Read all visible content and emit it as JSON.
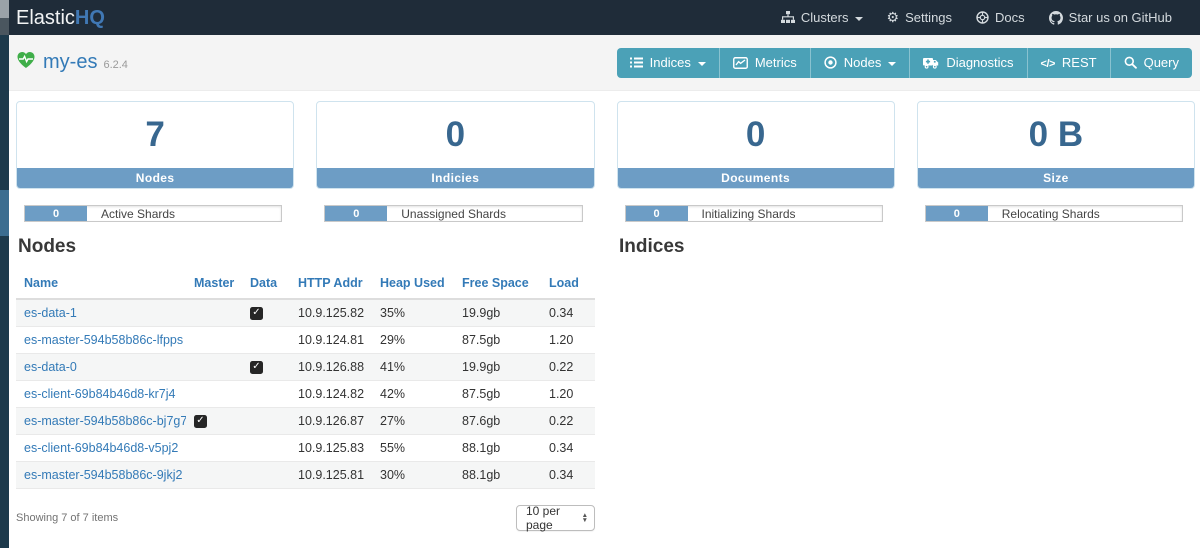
{
  "colors": {
    "navbar_bg": "#1f2c39",
    "brand_accent": "#4078b4",
    "teal_button": "#4ba1b7",
    "steel_blue": "#6d9dc5",
    "stat_number": "#38678f",
    "link_blue": "#337ab7",
    "heart_green": "#3fae49"
  },
  "navbar": {
    "brand": {
      "elastic": "Elastic",
      "hq": "HQ"
    },
    "items": [
      {
        "label": "Clusters",
        "icon": "sitemap-icon",
        "caret": true
      },
      {
        "label": "Settings",
        "icon": "gear-icon",
        "caret": false
      },
      {
        "label": "Docs",
        "icon": "docs-icon",
        "caret": false
      },
      {
        "label": "Star us on GitHub",
        "icon": "github-icon",
        "caret": false
      }
    ]
  },
  "cluster_bar": {
    "cluster_name": "my-es",
    "version": "6.2.4",
    "buttons": [
      {
        "label": "Indices",
        "icon": "list-icon",
        "caret": true
      },
      {
        "label": "Metrics",
        "icon": "chart-icon",
        "caret": false
      },
      {
        "label": "Nodes",
        "icon": "dot-circle-icon",
        "caret": true
      },
      {
        "label": "Diagnostics",
        "icon": "ambulance-icon",
        "caret": false
      },
      {
        "label": "REST",
        "icon": "code-icon",
        "caret": false
      },
      {
        "label": "Query",
        "icon": "search-icon",
        "caret": false
      }
    ]
  },
  "stat_cards": [
    {
      "value": "7",
      "label": "Nodes"
    },
    {
      "value": "0",
      "label": "Indicies"
    },
    {
      "value": "0",
      "label": "Documents"
    },
    {
      "value": "0 B",
      "label": "Size"
    }
  ],
  "shard_bars": [
    {
      "value": "0",
      "label": "Active Shards"
    },
    {
      "value": "0",
      "label": "Unassigned Shards"
    },
    {
      "value": "0",
      "label": "Initializing Shards"
    },
    {
      "value": "0",
      "label": "Relocating Shards"
    }
  ],
  "nodes_section": {
    "title": "Nodes",
    "columns": [
      "Name",
      "Master",
      "Data",
      "HTTP Addr",
      "Heap Used",
      "Free Space",
      "Load"
    ],
    "rows": [
      {
        "name": "es-data-1",
        "master": false,
        "data": true,
        "http_addr": "10.9.125.82",
        "heap_used": "35%",
        "free_space": "19.9gb",
        "load": "0.34"
      },
      {
        "name": "es-master-594b58b86c-lfpps",
        "master": false,
        "data": false,
        "http_addr": "10.9.124.81",
        "heap_used": "29%",
        "free_space": "87.5gb",
        "load": "1.20"
      },
      {
        "name": "es-data-0",
        "master": false,
        "data": true,
        "http_addr": "10.9.126.88",
        "heap_used": "41%",
        "free_space": "19.9gb",
        "load": "0.22"
      },
      {
        "name": "es-client-69b84b46d8-kr7j4",
        "master": false,
        "data": false,
        "http_addr": "10.9.124.82",
        "heap_used": "42%",
        "free_space": "87.5gb",
        "load": "1.20"
      },
      {
        "name": "es-master-594b58b86c-bj7g7",
        "master": true,
        "data": false,
        "http_addr": "10.9.126.87",
        "heap_used": "27%",
        "free_space": "87.6gb",
        "load": "0.22"
      },
      {
        "name": "es-client-69b84b46d8-v5pj2",
        "master": false,
        "data": false,
        "http_addr": "10.9.125.83",
        "heap_used": "55%",
        "free_space": "88.1gb",
        "load": "0.34"
      },
      {
        "name": "es-master-594b58b86c-9jkj2",
        "master": false,
        "data": false,
        "http_addr": "10.9.125.81",
        "heap_used": "30%",
        "free_space": "88.1gb",
        "load": "0.34"
      }
    ],
    "footer": {
      "summary": "Showing 7 of 7 items",
      "page_size": "10 per page"
    }
  },
  "indices_section": {
    "title": "Indices"
  }
}
